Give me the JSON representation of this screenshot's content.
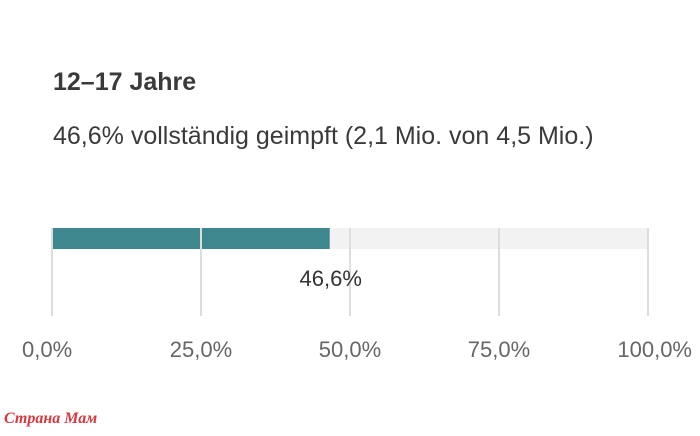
{
  "chart_data": {
    "type": "bar",
    "orientation": "horizontal",
    "title": "12–17 Jahre",
    "subtitle": "46,6% vollständig geimpft (2,1 Mio. von 4,5 Mio.)",
    "categories": [
      "12–17 Jahre"
    ],
    "values": [
      46.6
    ],
    "value_labels": [
      "46,6%"
    ],
    "xlim": [
      0,
      100
    ],
    "xticks": [
      0,
      25,
      50,
      75,
      100
    ],
    "xtick_labels": [
      "0,0%",
      "25,0%",
      "50,0%",
      "75,0%",
      "100,0%"
    ],
    "grid": true,
    "colors": {
      "bar": "#3e878f",
      "track": "#f2f2f2",
      "grid": "#dddddd",
      "text": "#333333",
      "tick": "#666666"
    }
  },
  "watermark": "Страна Мам"
}
